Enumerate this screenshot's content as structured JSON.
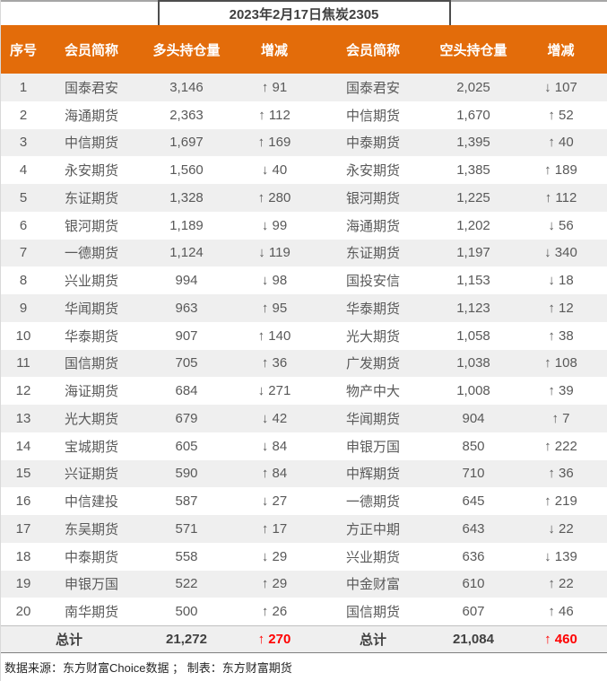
{
  "chart_data": {
    "type": "table",
    "title": "2023年2月17日焦炭2305",
    "columns": [
      "序号",
      "会员简称",
      "多头持仓量",
      "增减",
      "会员简称",
      "空头持仓量",
      "增减"
    ],
    "rows": [
      [
        "1",
        "国泰君安",
        "3,146",
        "↑ 91",
        "国泰君安",
        "2,025",
        "↓ 107"
      ],
      [
        "2",
        "海通期货",
        "2,363",
        "↑ 112",
        "中信期货",
        "1,670",
        "↑ 52"
      ],
      [
        "3",
        "中信期货",
        "1,697",
        "↑ 169",
        "中泰期货",
        "1,395",
        "↑ 40"
      ],
      [
        "4",
        "永安期货",
        "1,560",
        "↓ 40",
        "永安期货",
        "1,385",
        "↑ 189"
      ],
      [
        "5",
        "东证期货",
        "1,328",
        "↑ 280",
        "银河期货",
        "1,225",
        "↑ 112"
      ],
      [
        "6",
        "银河期货",
        "1,189",
        "↓ 99",
        "海通期货",
        "1,202",
        "↓ 56"
      ],
      [
        "7",
        "一德期货",
        "1,124",
        "↓ 119",
        "东证期货",
        "1,197",
        "↓ 340"
      ],
      [
        "8",
        "兴业期货",
        "994",
        "↓ 98",
        "国投安信",
        "1,153",
        "↓ 18"
      ],
      [
        "9",
        "华闻期货",
        "963",
        "↑ 95",
        "华泰期货",
        "1,123",
        "↑ 12"
      ],
      [
        "10",
        "华泰期货",
        "907",
        "↑ 140",
        "光大期货",
        "1,058",
        "↑ 38"
      ],
      [
        "11",
        "国信期货",
        "705",
        "↑ 36",
        "广发期货",
        "1,038",
        "↑ 108"
      ],
      [
        "12",
        "海证期货",
        "684",
        "↓ 271",
        "物产中大",
        "1,008",
        "↑ 39"
      ],
      [
        "13",
        "光大期货",
        "679",
        "↓ 42",
        "华闻期货",
        "904",
        "↑ 7"
      ],
      [
        "14",
        "宝城期货",
        "605",
        "↓ 84",
        "申银万国",
        "850",
        "↑ 222"
      ],
      [
        "15",
        "兴证期货",
        "590",
        "↑ 84",
        "中辉期货",
        "710",
        "↑ 36"
      ],
      [
        "16",
        "中信建投",
        "587",
        "↓ 27",
        "一德期货",
        "645",
        "↑ 219"
      ],
      [
        "17",
        "东吴期货",
        "571",
        "↑ 17",
        "方正中期",
        "643",
        "↓ 22"
      ],
      [
        "18",
        "中泰期货",
        "558",
        "↓ 29",
        "兴业期货",
        "636",
        "↓ 139"
      ],
      [
        "19",
        "申银万国",
        "522",
        "↑ 29",
        "中金财富",
        "610",
        "↑ 22"
      ],
      [
        "20",
        "南华期货",
        "500",
        "↑ 26",
        "国信期货",
        "607",
        "↑ 46"
      ]
    ],
    "total_row": [
      "",
      "总计",
      "21,272",
      "↑ 270",
      "总计",
      "21,084",
      "↑ 460"
    ],
    "layout": "two mirrored halves: long positions (left), short positions (right); alternating row shading; totals row highlighted"
  },
  "footer": {
    "source_note": "数据来源：东方财富Choice数据 ； 制表：东方财富期货"
  },
  "colors": {
    "header_orange": "#E36C0A",
    "row_alt_gray": "#EFEFEF",
    "body_text_gray": "#595959",
    "title_text": "#404040",
    "total_red": "#FF0000",
    "header_text": "#FFFFFF"
  }
}
